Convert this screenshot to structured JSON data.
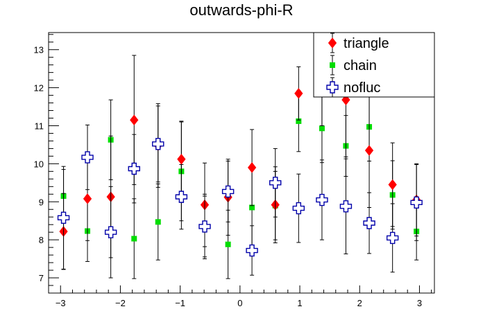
{
  "chart_data": {
    "type": "scatter",
    "title": "outwards-phi-R",
    "xlabel": "",
    "ylabel": "",
    "xlim": [
      -3.2,
      3.25
    ],
    "ylim": [
      6.6,
      13.45
    ],
    "xticks": [
      -3,
      -2,
      -1,
      0,
      1,
      2,
      3
    ],
    "yticks": [
      7,
      8,
      9,
      10,
      11,
      12,
      13
    ],
    "legend_position": "top-right",
    "x": [
      -2.95,
      -2.55,
      -2.16,
      -1.77,
      -1.37,
      -0.98,
      -0.59,
      -0.2,
      0.2,
      0.59,
      0.98,
      1.37,
      1.77,
      2.16,
      2.55,
      2.95
    ],
    "series": [
      {
        "name": "triangle",
        "marker": "diamond",
        "color": "#ff0000",
        "values": [
          8.22,
          9.08,
          9.13,
          11.15,
          10.48,
          10.12,
          8.92,
          9.12,
          9.9,
          8.92,
          11.85,
          12.2,
          11.68,
          10.35,
          9.45,
          9.05
        ],
        "errors": [
          1.0,
          1.1,
          1.6,
          1.7,
          1.1,
          1.0,
          1.1,
          1.0,
          1.0,
          1.0,
          0.7,
          1.2,
          1.5,
          1.5,
          1.1,
          0.95
        ]
      },
      {
        "name": "chain",
        "marker": "square",
        "color": "#00dd00",
        "values": [
          9.15,
          8.23,
          10.63,
          8.03,
          8.47,
          9.8,
          8.35,
          7.88,
          8.85,
          8.9,
          11.12,
          10.93,
          10.47,
          10.97,
          9.18,
          8.22
        ],
        "errors": [
          0.7,
          0.8,
          1.05,
          1.05,
          1.0,
          1.3,
          0.8,
          0.9,
          1.0,
          0.9,
          0.8,
          0.9,
          0.8,
          0.9,
          0.9,
          0.75
        ]
      },
      {
        "name": "nofluc",
        "marker": "open-cross",
        "color": "#0000aa",
        "values": [
          8.58,
          10.17,
          8.2,
          9.87,
          10.52,
          9.13,
          8.35,
          9.27,
          7.72,
          9.5,
          8.83,
          9.05,
          8.88,
          8.44,
          8.05,
          8.98
        ],
        "errors": [
          1.35,
          0.85,
          1.2,
          0.9,
          1.0,
          0.85,
          0.85,
          0.8,
          0.65,
          0.9,
          0.9,
          1.05,
          1.25,
          0.8,
          0.9,
          1.0
        ]
      }
    ]
  }
}
